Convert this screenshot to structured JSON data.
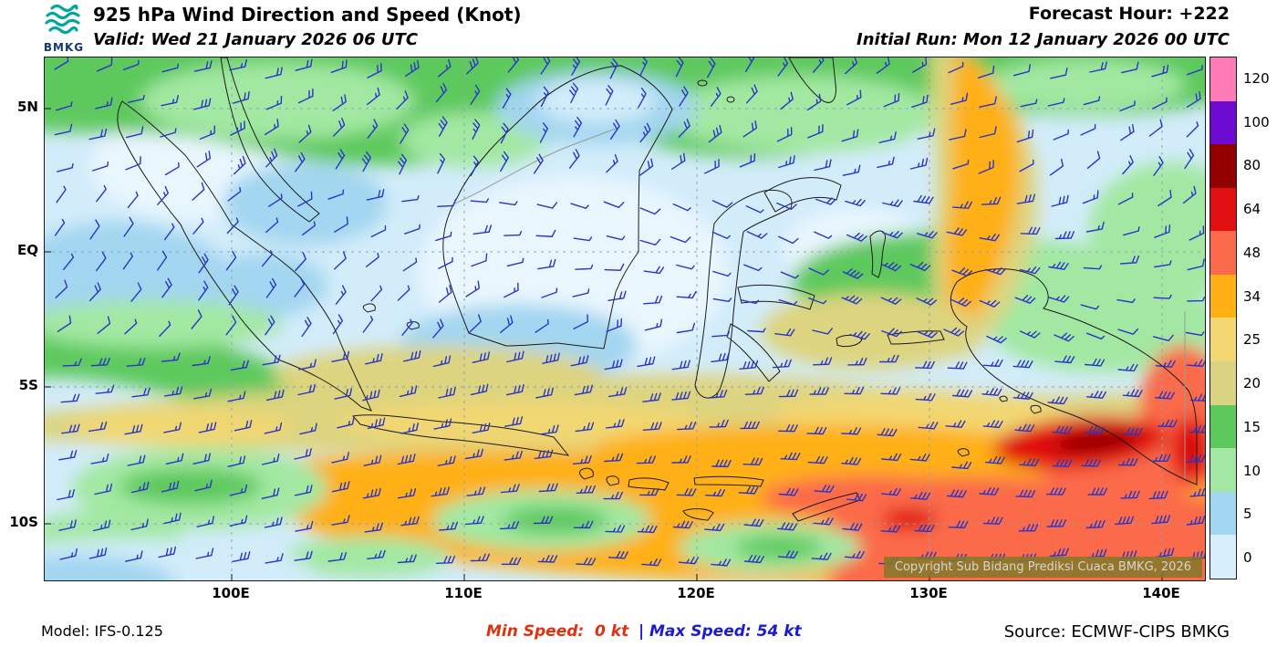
{
  "header": {
    "logo_text": "BMKG",
    "title": "925 hPa Wind Direction and Speed (Knot)",
    "valid": "Valid: Wed 21 January 2026 06 UTC",
    "forecast_hour": "Forecast Hour: +222",
    "initial_run": "Initial Run: Mon 12 January 2026 00 UTC"
  },
  "map": {
    "lat_labels": [
      "5N",
      "EQ",
      "5S",
      "10S"
    ],
    "lon_labels": [
      "100E",
      "110E",
      "120E",
      "130E",
      "140E"
    ],
    "copyright": "Copyright Sub Bidang Prediksi Cuaca BMKG, 2026",
    "barb_color": "#2a35c8"
  },
  "legend": {
    "unit": "Knot",
    "entries": [
      {
        "label": "120",
        "color": "#ff7bb5"
      },
      {
        "label": "100",
        "color": "#6e0bd0"
      },
      {
        "label": "80",
        "color": "#930000"
      },
      {
        "label": "64",
        "color": "#e01010"
      },
      {
        "label": "48",
        "color": "#fb6a4a"
      },
      {
        "label": "34",
        "color": "#ffb014"
      },
      {
        "label": "25",
        "color": "#f2d772"
      },
      {
        "label": "20",
        "color": "#d9d382"
      },
      {
        "label": "15",
        "color": "#5dc95d"
      },
      {
        "label": "10",
        "color": "#a2e8a2"
      },
      {
        "label": "5",
        "color": "#a3d6f0"
      },
      {
        "label": "0",
        "color": "#d8eefb"
      }
    ]
  },
  "footer": {
    "model": "Model: IFS-0.125",
    "min_speed": "Min Speed:  0 kt",
    "separator": "|",
    "max_speed": "Max Speed: 54 kt",
    "source": "Source: ECMWF-CIPS BMKG"
  }
}
